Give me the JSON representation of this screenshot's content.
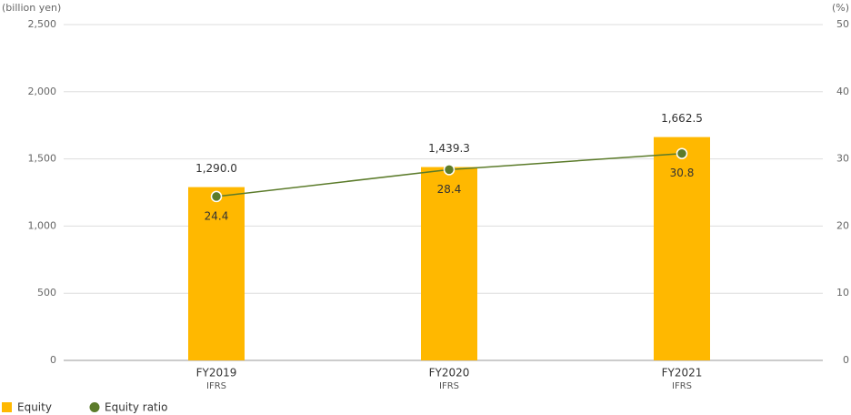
{
  "chart_data": {
    "type": "bar-line",
    "y_axis_label": "(billion yen)",
    "y2_axis_label": "(%)",
    "categories": [
      "FY2019",
      "FY2020",
      "FY2021"
    ],
    "category_sublabels": [
      "IFRS",
      "IFRS",
      "IFRS"
    ],
    "series": [
      {
        "name": "Equity",
        "type": "bar",
        "color": "#ffb800",
        "values": [
          1290.0,
          1439.3,
          1662.5
        ],
        "value_labels": [
          "1,290.0",
          "1,439.3",
          "1,662.5"
        ]
      },
      {
        "name": "Equity ratio",
        "type": "line",
        "axis": "y2",
        "color": "#5b7b2a",
        "values": [
          24.4,
          28.4,
          30.8
        ]
      }
    ],
    "ylim": [
      0,
      2500
    ],
    "yticks": [
      0,
      500,
      {
        "value": 1000,
        "label": "1,000"
      },
      {
        "value": 1500,
        "label": "1,500"
      },
      {
        "value": 2000,
        "label": "2,000"
      },
      {
        "value": 2500,
        "label": "2,500"
      }
    ],
    "y2lim": [
      0,
      50
    ],
    "y2ticks": [
      0,
      10,
      20,
      30,
      40,
      50
    ],
    "grid": true
  }
}
